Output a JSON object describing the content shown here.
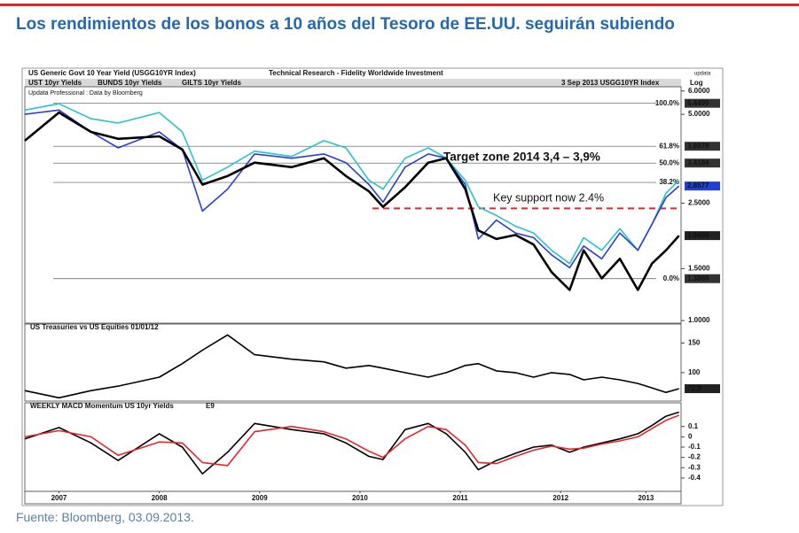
{
  "header": {
    "title": "Los rendimientos de los bonos a 10 años del Tesoro de EE.UU. seguirán subiendo"
  },
  "chart_header": {
    "title": "US Generic Govt 10 Year Yield (USGG10YR Index)",
    "publisher": "Technical Research - Fidelity Worldwide Investment",
    "brand": "updata",
    "date": "3 Sep 2013 USGG10YR Index",
    "scale_label": "Log",
    "credit": "Updata Professional : Data by Bloomberg"
  },
  "chart_data": [
    {
      "type": "line",
      "log_y": true,
      "x": [
        2007.16,
        2007.5,
        2007.82,
        2008.09,
        2008.5,
        2008.73,
        2008.93,
        2009.18,
        2009.45,
        2009.82,
        2010.14,
        2010.36,
        2010.59,
        2010.73,
        2010.95,
        2011.18,
        2011.36,
        2011.55,
        2011.68,
        2011.86,
        2012.05,
        2012.23,
        2012.41,
        2012.59,
        2012.73,
        2012.91,
        2013.09,
        2013.27,
        2013.41,
        2013.55,
        2013.68
      ],
      "xlim": [
        2007.16,
        2013.7
      ],
      "ylim": [
        0.98,
        6.2
      ],
      "yticks": [
        {
          "value": 6,
          "label": "6.0000"
        },
        {
          "value": 5,
          "label": "5.0000"
        },
        {
          "value": 2.5,
          "label": "2.5000"
        },
        {
          "value": 1.5,
          "label": "1.5000"
        },
        {
          "value": 1,
          "label": "1.0000"
        }
      ],
      "series": [
        {
          "name": "GILTS 10yr Yields",
          "color": "#27c4c9",
          "values": [
            5.17,
            5.43,
            4.83,
            4.67,
            5.07,
            4.36,
            2.99,
            3.31,
            3.75,
            3.6,
            4.07,
            3.85,
            2.99,
            2.79,
            3.55,
            3.85,
            3.55,
            2.99,
            2.43,
            2.27,
            2.09,
            1.98,
            1.73,
            1.56,
            1.91,
            1.73,
            2.05,
            1.73,
            2.12,
            2.7,
            2.99
          ]
        },
        {
          "name": "UST 10yr Yields",
          "color": "#2a3fd0",
          "values": [
            5.0,
            5.17,
            4.36,
            3.85,
            4.36,
            3.8,
            2.35,
            2.79,
            3.67,
            3.55,
            3.67,
            3.43,
            2.89,
            2.52,
            3.31,
            3.67,
            3.55,
            2.89,
            1.89,
            2.19,
            1.98,
            1.91,
            1.67,
            1.51,
            1.79,
            1.62,
            1.98,
            1.73,
            2.12,
            2.61,
            2.8577
          ],
          "box_color": "#1f3fd6"
        },
        {
          "name": "BUNDS 10yr Yields",
          "color": "#000000",
          "values": [
            4.07,
            5.07,
            4.36,
            4.13,
            4.21,
            3.8,
            2.89,
            3.09,
            3.43,
            3.31,
            3.55,
            3.09,
            2.74,
            2.43,
            2.83,
            3.43,
            3.55,
            2.79,
            2.02,
            1.89,
            1.95,
            1.81,
            1.46,
            1.27,
            1.73,
            1.39,
            1.62,
            1.27,
            1.56,
            1.73,
            1.9406
          ],
          "box_color": "#222222"
        }
      ],
      "levels": [
        {
          "name": "100.0%",
          "value": 5.4499,
          "show_value": true
        },
        {
          "name": "61.8%",
          "value": 3.8978,
          "show_value": true
        },
        {
          "name": "50.0%",
          "value": 3.4184,
          "show_value": true
        },
        {
          "name": "38.2%",
          "value": 2.939,
          "show_value": false
        },
        {
          "name": "0.0%",
          "value": 1.3869,
          "show_value": true
        }
      ],
      "annotations": [
        {
          "text": "Target zone 2014 3,4 – 3,9%",
          "color": "#d9262b"
        },
        {
          "text": "Key support now 2.4%",
          "value": 2.4,
          "color": "#e3262b"
        }
      ]
    },
    {
      "type": "line",
      "title": "US Treasuries vs US Equities 01/01/12",
      "x": [
        2007.16,
        2007.5,
        2007.82,
        2008.09,
        2008.5,
        2008.73,
        2008.93,
        2009.18,
        2009.45,
        2009.82,
        2010.14,
        2010.36,
        2010.59,
        2010.73,
        2010.95,
        2011.18,
        2011.36,
        2011.55,
        2011.68,
        2011.86,
        2012.05,
        2012.23,
        2012.41,
        2012.59,
        2012.73,
        2012.91,
        2013.09,
        2013.27,
        2013.41,
        2013.55,
        2013.68
      ],
      "xlim": [
        2007.16,
        2013.7
      ],
      "ylim": [
        52,
        182
      ],
      "yticks": [
        150,
        100
      ],
      "series": [
        {
          "color": "#000000",
          "box_color": "#222222",
          "values": [
            69.7,
            57.6,
            69.7,
            77.3,
            92.4,
            115.2,
            137.9,
            163.6,
            130.3,
            122.7,
            118.2,
            107.6,
            112.1,
            107.6,
            100,
            92.4,
            100,
            112.1,
            115.2,
            103,
            100,
            92.4,
            100,
            97,
            87.9,
            92.4,
            87.9,
            81.8,
            74.2,
            66.7,
            72.9
          ]
        }
      ]
    },
    {
      "type": "line",
      "title": "WEEKLY MACD Momentum US 10yr Yields",
      "x": [
        2007.16,
        2007.5,
        2007.82,
        2008.09,
        2008.5,
        2008.73,
        2008.93,
        2009.18,
        2009.45,
        2009.82,
        2010.14,
        2010.36,
        2010.59,
        2010.73,
        2010.95,
        2011.18,
        2011.36,
        2011.55,
        2011.68,
        2011.86,
        2012.05,
        2012.23,
        2012.41,
        2012.59,
        2012.73,
        2012.91,
        2013.09,
        2013.27,
        2013.41,
        2013.55,
        2013.68
      ],
      "xlim": [
        2007.16,
        2013.7
      ],
      "ylim": [
        -0.53,
        0.33
      ],
      "yticks": [
        0.1,
        0,
        -0.1,
        -0.2,
        -0.3,
        -0.4
      ],
      "xticks": [
        {
          "value": 2007.5,
          "label": "2007"
        },
        {
          "value": 2008.5,
          "label": "2008"
        },
        {
          "value": 2009.5,
          "label": "2009"
        },
        {
          "value": 2010.5,
          "label": "2010"
        },
        {
          "value": 2011.5,
          "label": "2011"
        },
        {
          "value": 2012.5,
          "label": "2012"
        },
        {
          "value": 2013.35,
          "label": "2013"
        }
      ],
      "series": [
        {
          "color": "#000000",
          "values": [
            -0.02,
            0.09,
            -0.06,
            -0.23,
            0.03,
            -0.1,
            -0.36,
            -0.15,
            0.13,
            0.07,
            0.03,
            -0.06,
            -0.19,
            -0.22,
            0.07,
            0.13,
            0.03,
            -0.15,
            -0.32,
            -0.23,
            -0.16,
            -0.1,
            -0.08,
            -0.15,
            -0.1,
            -0.06,
            -0.02,
            0.03,
            0.11,
            0.2,
            0.24
          ]
        },
        {
          "name": "E9",
          "color": "#e3262b",
          "values": [
            0.0,
            0.06,
            0.0,
            -0.18,
            -0.05,
            -0.06,
            -0.25,
            -0.28,
            0.05,
            0.1,
            0.05,
            -0.02,
            -0.14,
            -0.2,
            -0.02,
            0.1,
            0.07,
            -0.08,
            -0.25,
            -0.26,
            -0.19,
            -0.13,
            -0.09,
            -0.12,
            -0.11,
            -0.07,
            -0.04,
            0.0,
            0.08,
            0.16,
            0.21
          ]
        }
      ]
    }
  ],
  "source": "Fuente: Bloomberg, 03.09.2013."
}
